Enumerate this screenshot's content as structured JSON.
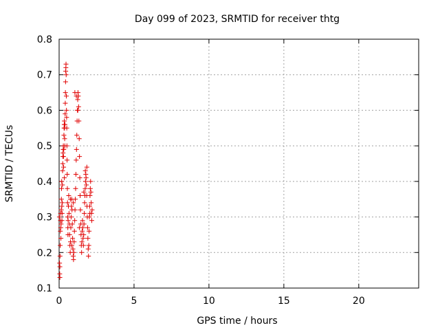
{
  "chart_data": {
    "type": "scatter",
    "title": "Day 099 of 2023, SRMTID for receiver thtg",
    "xlabel": "GPS time / hours",
    "ylabel": "SRMTID / TECUs",
    "xlim": [
      0,
      24
    ],
    "ylim": [
      0.1,
      0.8
    ],
    "x_ticks": [
      0,
      5,
      10,
      15,
      20
    ],
    "x_tick_labels": [
      "0",
      "5",
      "10",
      "15",
      "20"
    ],
    "y_ticks": [
      0.1,
      0.2,
      0.3,
      0.4,
      0.5,
      0.6,
      0.7,
      0.8
    ],
    "y_tick_labels": [
      "0.1",
      "0.2",
      "0.3",
      "0.4",
      "0.5",
      "0.6",
      "0.7",
      "0.8"
    ],
    "grid": true,
    "marker": "plus",
    "colors": {
      "points": "#e00000",
      "axes": "#000000",
      "grid": "#a0a0a0"
    },
    "series": [
      {
        "name": "SRMTID",
        "points": [
          [
            0.02,
            0.3
          ],
          [
            0.03,
            0.17
          ],
          [
            0.04,
            0.14
          ],
          [
            0.05,
            0.13
          ],
          [
            0.05,
            0.16
          ],
          [
            0.06,
            0.19
          ],
          [
            0.07,
            0.22
          ],
          [
            0.08,
            0.26
          ],
          [
            0.09,
            0.29
          ],
          [
            0.1,
            0.31
          ],
          [
            0.11,
            0.27
          ],
          [
            0.12,
            0.24
          ],
          [
            0.13,
            0.28
          ],
          [
            0.14,
            0.32
          ],
          [
            0.15,
            0.35
          ],
          [
            0.16,
            0.38
          ],
          [
            0.17,
            0.4
          ],
          [
            0.18,
            0.33
          ],
          [
            0.19,
            0.29
          ],
          [
            0.2,
            0.31
          ],
          [
            0.21,
            0.34
          ],
          [
            0.22,
            0.39
          ],
          [
            0.23,
            0.43
          ],
          [
            0.24,
            0.45
          ],
          [
            0.25,
            0.47
          ],
          [
            0.26,
            0.48
          ],
          [
            0.27,
            0.49
          ],
          [
            0.28,
            0.5
          ],
          [
            0.29,
            0.47
          ],
          [
            0.3,
            0.44
          ],
          [
            0.31,
            0.49
          ],
          [
            0.32,
            0.53
          ],
          [
            0.33,
            0.55
          ],
          [
            0.34,
            0.56
          ],
          [
            0.35,
            0.57
          ],
          [
            0.36,
            0.55
          ],
          [
            0.37,
            0.52
          ],
          [
            0.38,
            0.5
          ],
          [
            0.39,
            0.56
          ],
          [
            0.4,
            0.59
          ],
          [
            0.41,
            0.62
          ],
          [
            0.42,
            0.65
          ],
          [
            0.43,
            0.68
          ],
          [
            0.44,
            0.71
          ],
          [
            0.45,
            0.72
          ],
          [
            0.46,
            0.73
          ],
          [
            0.47,
            0.7
          ],
          [
            0.48,
            0.64
          ],
          [
            0.49,
            0.6
          ],
          [
            0.5,
            0.58
          ],
          [
            0.51,
            0.55
          ],
          [
            0.52,
            0.5
          ],
          [
            0.53,
            0.46
          ],
          [
            0.54,
            0.42
          ],
          [
            0.55,
            0.38
          ],
          [
            0.56,
            0.34
          ],
          [
            0.57,
            0.3
          ],
          [
            0.58,
            0.27
          ],
          [
            0.59,
            0.25
          ],
          [
            0.6,
            0.29
          ],
          [
            0.62,
            0.33
          ],
          [
            0.64,
            0.36
          ],
          [
            0.66,
            0.31
          ],
          [
            0.68,
            0.28
          ],
          [
            0.7,
            0.25
          ],
          [
            0.72,
            0.22
          ],
          [
            0.74,
            0.2
          ],
          [
            0.76,
            0.23
          ],
          [
            0.78,
            0.27
          ],
          [
            0.8,
            0.3
          ],
          [
            0.82,
            0.33
          ],
          [
            0.84,
            0.35
          ],
          [
            0.86,
            0.32
          ],
          [
            0.88,
            0.28
          ],
          [
            0.9,
            0.24
          ],
          [
            0.92,
            0.21
          ],
          [
            0.94,
            0.19
          ],
          [
            0.96,
            0.18
          ],
          [
            0.98,
            0.2
          ],
          [
            1.0,
            0.23
          ],
          [
            1.02,
            0.26
          ],
          [
            1.04,
            0.29
          ],
          [
            1.06,
            0.32
          ],
          [
            1.08,
            0.35
          ],
          [
            1.1,
            0.38
          ],
          [
            1.12,
            0.42
          ],
          [
            1.14,
            0.46
          ],
          [
            1.16,
            0.49
          ],
          [
            1.18,
            0.53
          ],
          [
            1.2,
            0.57
          ],
          [
            1.22,
            0.6
          ],
          [
            1.24,
            0.63
          ],
          [
            1.26,
            0.65
          ],
          [
            1.28,
            0.64
          ],
          [
            1.3,
            0.61
          ],
          [
            1.32,
            0.57
          ],
          [
            1.34,
            0.52
          ],
          [
            1.36,
            0.47
          ],
          [
            1.38,
            0.41
          ],
          [
            1.4,
            0.36
          ],
          [
            1.42,
            0.32
          ],
          [
            1.44,
            0.28
          ],
          [
            1.46,
            0.25
          ],
          [
            1.48,
            0.22
          ],
          [
            1.5,
            0.2
          ],
          [
            1.52,
            0.23
          ],
          [
            1.54,
            0.26
          ],
          [
            1.56,
            0.29
          ],
          [
            1.58,
            0.27
          ],
          [
            1.6,
            0.24
          ],
          [
            1.62,
            0.22
          ],
          [
            1.64,
            0.25
          ],
          [
            1.66,
            0.28
          ],
          [
            1.68,
            0.31
          ],
          [
            1.7,
            0.34
          ],
          [
            1.72,
            0.36
          ],
          [
            1.74,
            0.38
          ],
          [
            1.76,
            0.4
          ],
          [
            1.78,
            0.42
          ],
          [
            1.8,
            0.41
          ],
          [
            1.82,
            0.39
          ],
          [
            1.84,
            0.36
          ],
          [
            1.86,
            0.33
          ],
          [
            1.88,
            0.3
          ],
          [
            1.9,
            0.27
          ],
          [
            1.92,
            0.24
          ],
          [
            1.94,
            0.21
          ],
          [
            1.96,
            0.19
          ],
          [
            1.98,
            0.22
          ],
          [
            2.0,
            0.26
          ],
          [
            2.02,
            0.3
          ],
          [
            2.04,
            0.33
          ],
          [
            2.06,
            0.36
          ],
          [
            2.08,
            0.38
          ],
          [
            2.1,
            0.4
          ],
          [
            2.12,
            0.37
          ],
          [
            2.14,
            0.34
          ],
          [
            2.16,
            0.31
          ],
          [
            2.18,
            0.29
          ],
          [
            2.2,
            0.32
          ],
          [
            1.05,
            0.65
          ],
          [
            1.15,
            0.64
          ],
          [
            1.25,
            0.6
          ],
          [
            1.75,
            0.43
          ],
          [
            1.85,
            0.44
          ],
          [
            0.95,
            0.34
          ],
          [
            1.35,
            0.27
          ],
          [
            1.65,
            0.37
          ],
          [
            0.85,
            0.22
          ],
          [
            2.05,
            0.31
          ],
          [
            0.35,
            0.41
          ],
          [
            0.75,
            0.35
          ]
        ]
      }
    ]
  }
}
